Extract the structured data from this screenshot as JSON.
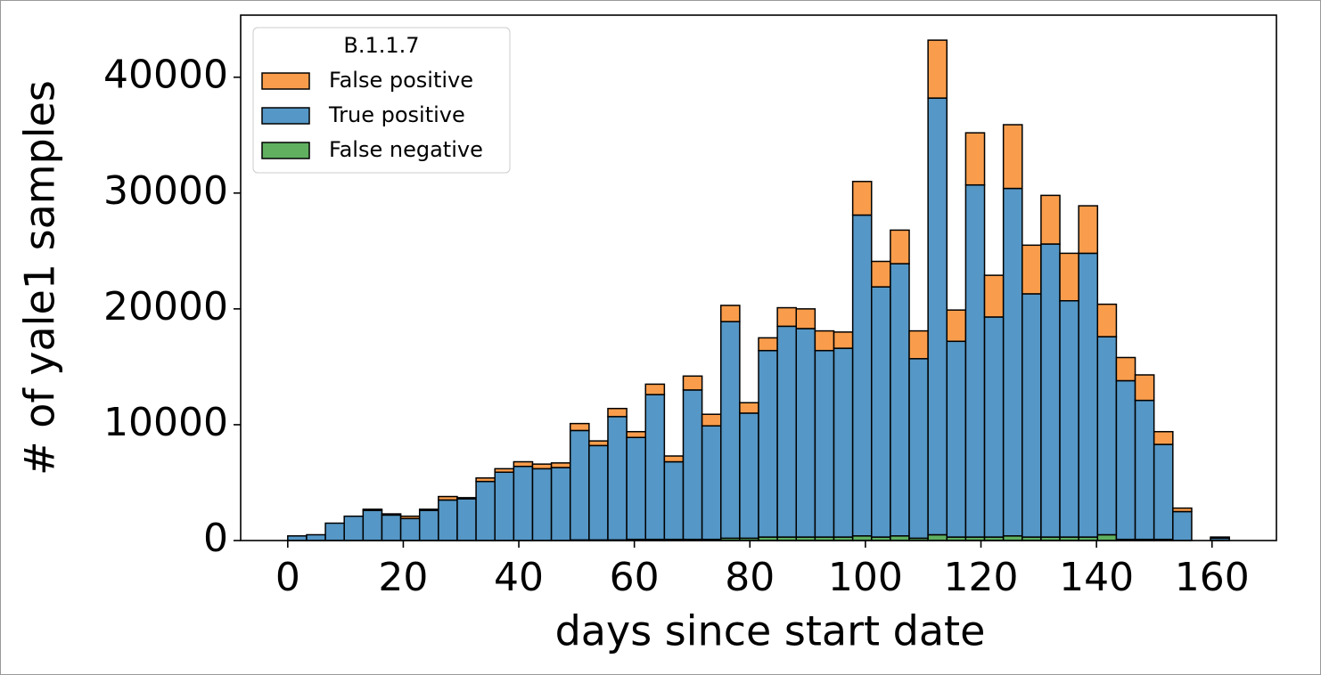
{
  "chart_data": {
    "type": "histogram",
    "xlabel": "days since start date",
    "ylabel": "# of yale1 samples",
    "legend_title": "B.1.1.7",
    "legend_position": "upper left",
    "stacked": true,
    "bins": [
      0,
      3.26,
      6.52,
      9.78,
      13.04,
      16.3,
      19.56,
      22.82,
      26.08,
      29.34,
      32.6,
      35.86,
      39.12,
      42.38,
      45.64,
      48.9,
      52.16,
      55.42,
      58.68,
      61.94,
      65.2,
      68.46,
      71.72,
      74.98,
      78.24,
      81.5,
      84.76,
      88.02,
      91.28,
      94.54,
      97.8,
      101.06,
      104.32,
      107.58,
      110.84,
      114.1,
      117.36,
      120.62,
      123.88,
      127.14,
      130.4,
      133.66,
      136.92,
      140.18,
      143.44,
      146.7,
      149.96,
      153.22,
      156.48,
      159.74,
      163
    ],
    "series": [
      {
        "name": "False positive",
        "color": "#f99d4c",
        "values": [
          0,
          0,
          0,
          0,
          100,
          100,
          200,
          100,
          300,
          100,
          300,
          300,
          400,
          400,
          400,
          600,
          400,
          700,
          500,
          900,
          500,
          1200,
          1000,
          1400,
          900,
          1100,
          1600,
          1700,
          1700,
          1400,
          2900,
          2200,
          2900,
          2400,
          5000,
          2700,
          4500,
          3600,
          5500,
          4200,
          4200,
          4100,
          4100,
          2800,
          2000,
          2200,
          1100,
          300,
          0,
          100
        ]
      },
      {
        "name": "True positive",
        "color": "#5597c6",
        "values": [
          400,
          500,
          1500,
          2100,
          2600,
          2200,
          1900,
          2600,
          3500,
          3600,
          5100,
          5900,
          6400,
          6200,
          6300,
          9450,
          8150,
          10650,
          8800,
          12500,
          6700,
          12900,
          9800,
          18700,
          10800,
          16100,
          18200,
          18000,
          16100,
          16300,
          27700,
          21600,
          23500,
          15500,
          37700,
          16900,
          30400,
          19000,
          30000,
          21000,
          25300,
          20400,
          24500,
          17100,
          13700,
          12000,
          8200,
          2500,
          0,
          200
        ]
      },
      {
        "name": "False negative",
        "color": "#60b060",
        "values": [
          0,
          0,
          0,
          0,
          0,
          0,
          0,
          0,
          0,
          0,
          0,
          0,
          0,
          0,
          0,
          50,
          50,
          50,
          100,
          100,
          100,
          100,
          100,
          200,
          200,
          300,
          300,
          300,
          300,
          300,
          400,
          300,
          400,
          200,
          500,
          300,
          300,
          300,
          400,
          300,
          300,
          300,
          300,
          500,
          100,
          100,
          100,
          0,
          0,
          0
        ]
      }
    ],
    "xlim": [
      -8.15,
      171.15
    ],
    "ylim": [
      0,
      45360
    ],
    "xticks": [
      0,
      20,
      40,
      60,
      80,
      100,
      120,
      140,
      160
    ],
    "yticks": [
      0,
      10000,
      20000,
      30000,
      40000
    ]
  }
}
